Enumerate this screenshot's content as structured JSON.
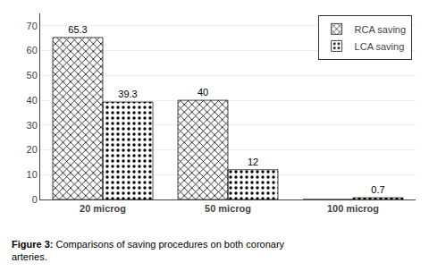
{
  "chart_data": {
    "type": "bar",
    "categories": [
      "20 microg",
      "50 microg",
      "100 microg"
    ],
    "series": [
      {
        "name": "RCA saving",
        "color": "#888888",
        "values": [
          65.3,
          40,
          0
        ],
        "value_labels": [
          "65.3",
          "40",
          null
        ]
      },
      {
        "name": "LCA saving",
        "color": "#cccccc",
        "values": [
          39.3,
          12,
          0.7
        ],
        "value_labels": [
          "39.3",
          "12",
          "0.7"
        ]
      }
    ],
    "ylim": [
      0,
      75
    ],
    "yticks": [
      0,
      10,
      20,
      30,
      40,
      50,
      60,
      70
    ],
    "grid": true,
    "legend": "upper right",
    "data_labels": true,
    "annotations": [
      "Figure 3:",
      "Comparisons of saving procedures on both coronary\narteries."
    ]
  }
}
